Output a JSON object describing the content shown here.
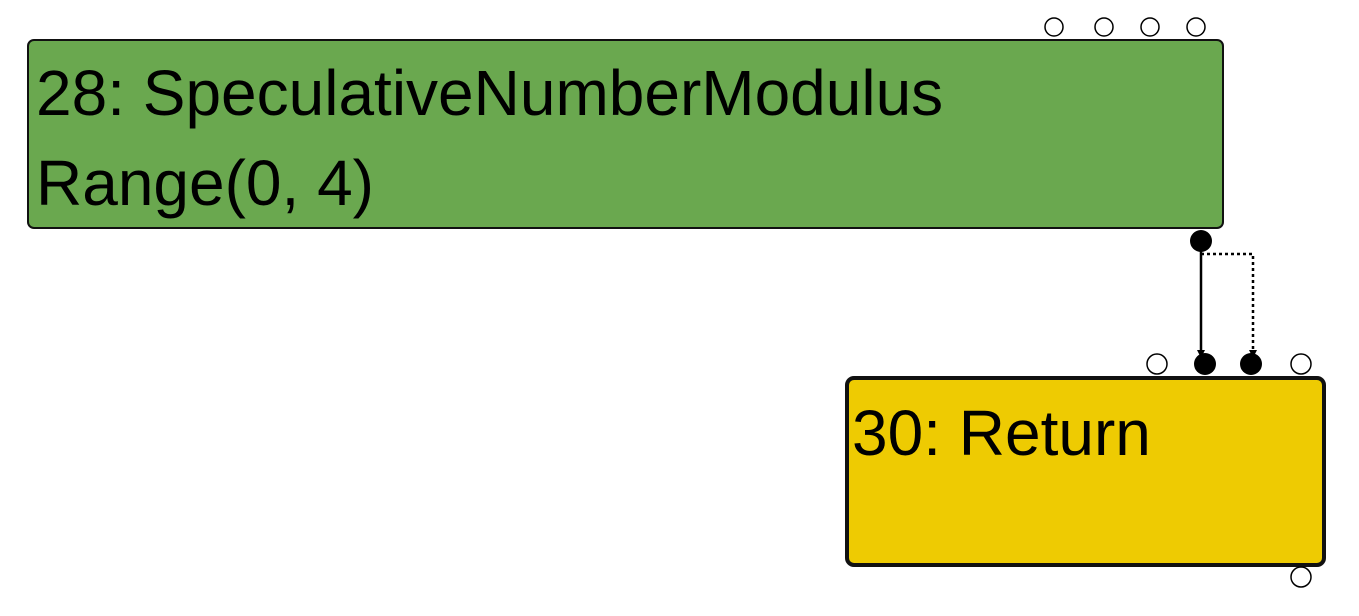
{
  "graph": {
    "nodes": [
      {
        "id": "node-28",
        "title": "28: SpeculativeNumberModulus",
        "subtitle": "Range(0, 4)",
        "color": "#6aa84f"
      },
      {
        "id": "node-30",
        "title": "30: Return",
        "color": "#eecb02"
      }
    ],
    "edges": [
      {
        "from": "node-28",
        "to": "node-30",
        "style": "solid"
      },
      {
        "from": "node-28",
        "to": "node-30",
        "style": "dotted"
      }
    ]
  }
}
